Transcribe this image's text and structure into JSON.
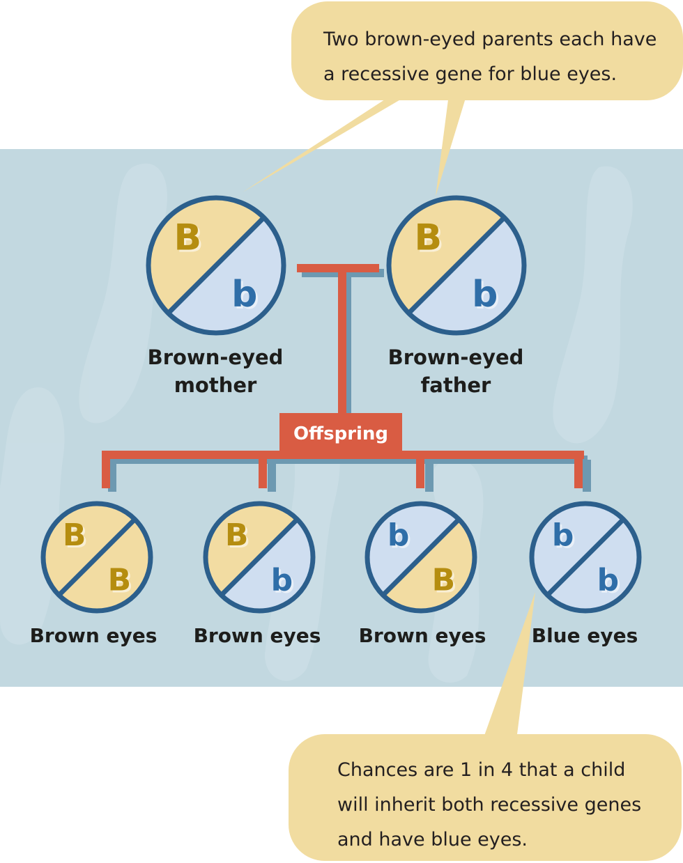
{
  "colors": {
    "background_panel": "#c2d8e0",
    "bubble_fill": "#f1dca0",
    "circle_stroke": "#2c5f8c",
    "dominant_fill": "#f2dca2",
    "dominant_text": "#b58d10",
    "recessive_fill": "#cfdef0",
    "recessive_text": "#2f6ea8",
    "connector": "#d95c43",
    "connector_shadow": "#6d99b1"
  },
  "callouts": {
    "top": "Two brown-eyed parents each have a recessive gene for blue eyes.",
    "bottom": "Chances are 1 in 4 that a child will inherit both recessive genes and have blue eyes."
  },
  "parents": [
    {
      "label_line1": "Brown-eyed",
      "label_line2": "mother",
      "allele_upper": "B",
      "allele_lower": "b"
    },
    {
      "label_line1": "Brown-eyed",
      "label_line2": "father",
      "allele_upper": "B",
      "allele_lower": "b"
    }
  ],
  "offspring_label": "Offspring",
  "offspring": [
    {
      "label": "Brown eyes",
      "allele_upper": "B",
      "allele_lower": "B"
    },
    {
      "label": "Brown eyes",
      "allele_upper": "B",
      "allele_lower": "b"
    },
    {
      "label": "Brown eyes",
      "allele_upper": "b",
      "allele_lower": "B"
    },
    {
      "label": "Blue eyes",
      "allele_upper": "b",
      "allele_lower": "b"
    }
  ]
}
